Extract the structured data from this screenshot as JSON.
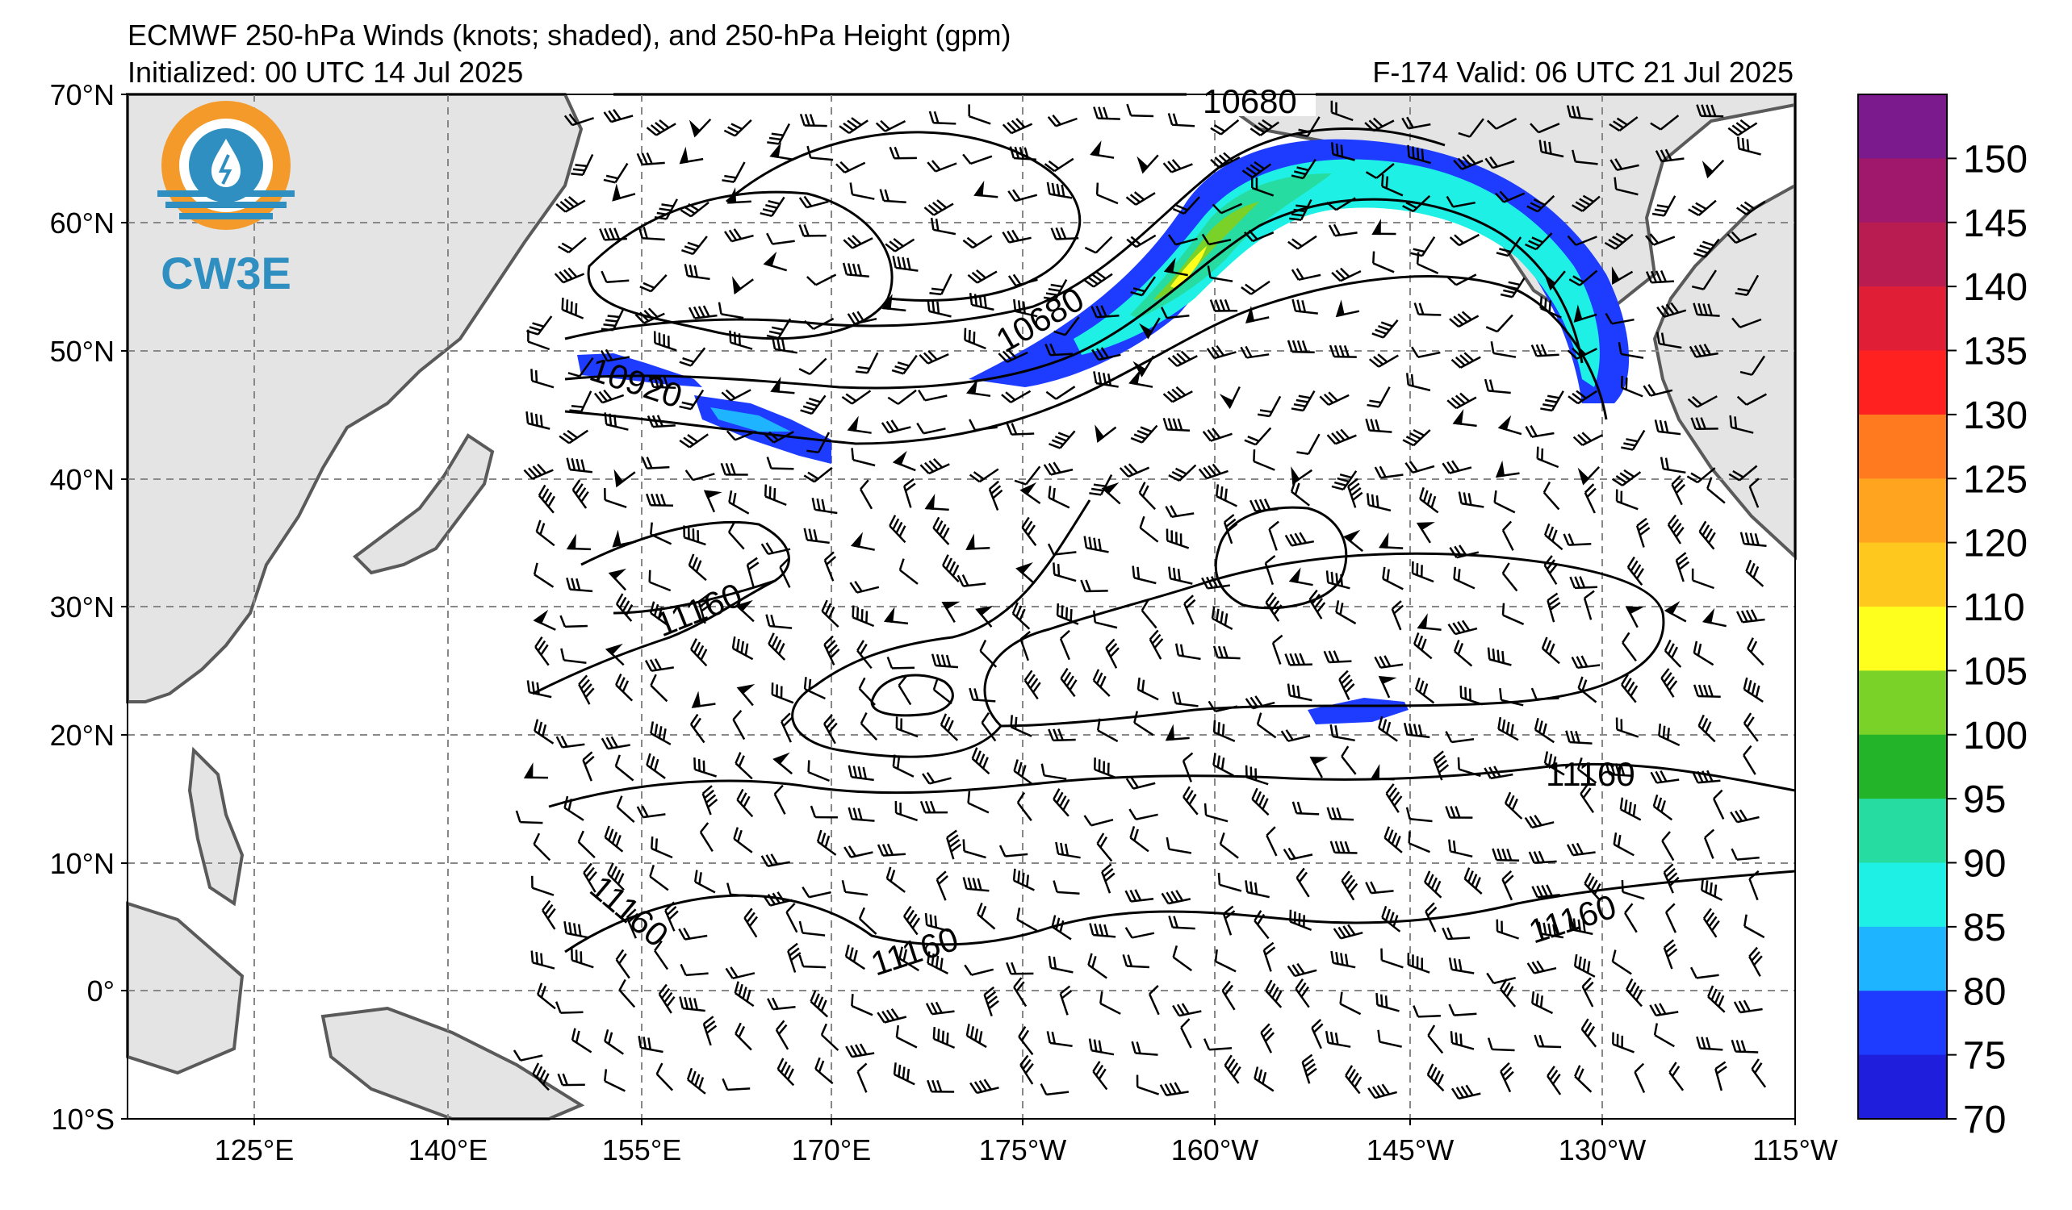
{
  "header": {
    "title": "ECMWF 250-hPa Winds (knots; shaded), and 250-hPa Height (gpm)",
    "initialized": "Initialized: 00 UTC 14 Jul 2025",
    "valid": "F-174  Valid: 06 UTC 21 Jul 2025"
  },
  "logo": {
    "text": "CW3E",
    "colors": {
      "orange": "#f39a2b",
      "blue": "#2f8fc0"
    }
  },
  "map": {
    "lat_labels": [
      "70°N",
      "60°N",
      "50°N",
      "40°N",
      "30°N",
      "20°N",
      "10°N",
      "0°",
      "10°S"
    ],
    "lon_labels": [
      "125°E",
      "140°E",
      "155°E",
      "170°E",
      "175°W",
      "160°W",
      "145°W",
      "130°W",
      "115°W"
    ],
    "contour_labels": [
      "10680",
      "10680",
      "10920",
      "11160",
      "11160",
      "11160",
      "11160",
      "11160"
    ]
  },
  "colorbar": {
    "ticks": [
      "150",
      "145",
      "140",
      "135",
      "130",
      "125",
      "120",
      "110",
      "105",
      "100",
      "95",
      "90",
      "85",
      "80",
      "75",
      "70"
    ],
    "colors": [
      "#7b1a8c",
      "#a0186c",
      "#b81c50",
      "#e01e36",
      "#ff2020",
      "#ff7a1e",
      "#ffa41e",
      "#ffc81e",
      "#ffff1e",
      "#7ad228",
      "#24b42a",
      "#26dca0",
      "#1ef0e6",
      "#1eb4ff",
      "#1e3cff",
      "#1e1edc"
    ]
  },
  "shading_colors": {
    "c75": "#1e3cff",
    "c80": "#1eb4ff",
    "c85": "#1ef0e6",
    "c90": "#26dca0",
    "c95": "#24b42a",
    "c100": "#7ad228",
    "c105": "#ffff1e"
  }
}
